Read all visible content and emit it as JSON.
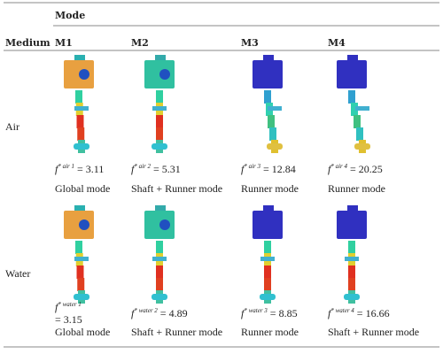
{
  "table": {
    "header_group": "Mode",
    "columns": [
      "Medium",
      "M1",
      "M2",
      "M3",
      "M4"
    ],
    "rows": [
      {
        "medium": "Air",
        "cells": [
          {
            "sym": "f",
            "sup": "* air 1",
            "eq": "= 3.11",
            "mode": "Global mode"
          },
          {
            "sym": "f",
            "sup": "* air 2",
            "eq": "= 5.31",
            "mode": "Shaft + Runner mode"
          },
          {
            "sym": "f",
            "sup": "* air 3",
            "eq": "= 12.84",
            "mode": "Runner mode"
          },
          {
            "sym": "f",
            "sup": "* air 4",
            "eq": "= 20.25",
            "mode": "Runner mode"
          }
        ]
      },
      {
        "medium": "Water",
        "cells": [
          {
            "sym": "f",
            "sup": "* water 1",
            "eq": "= 3.15",
            "mode": "Global mode"
          },
          {
            "sym": "f",
            "sup": "* water 2",
            "eq": "= 4.89",
            "mode": "Shaft + Runner mode"
          },
          {
            "sym": "f",
            "sup": "* water 3",
            "eq": "= 8.85",
            "mode": "Runner mode"
          },
          {
            "sym": "f",
            "sup": "* water 4",
            "eq": "= 16.66",
            "mode": "Shaft + Runner mode"
          }
        ]
      }
    ]
  }
}
